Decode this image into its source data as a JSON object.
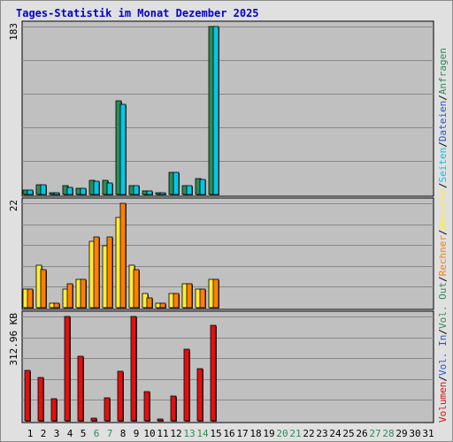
{
  "title": "Tages-Statistik im Monat Dezember 2025",
  "colors": {
    "title": "#0000cc",
    "panel_bg": "#c0c0c0",
    "frame_bg": "#e0e0e0",
    "grid": "#888888",
    "weekend_label": "#2e8b57",
    "weekday_label": "#000000",
    "anfragen": "#2e8b57",
    "dateien": "#2653d6",
    "seiten": "#00c8e6",
    "besuche": "#ffee33",
    "rechner": "#ff8000",
    "vol_out": "#2e8b57",
    "vol_in": "#2653d6",
    "volumen": "#e01010"
  },
  "right_legend": [
    {
      "text": "Volumen",
      "color": "#e01010"
    },
    {
      "text": "/",
      "color": "#000000"
    },
    {
      "text": "Vol. In",
      "color": "#2653d6"
    },
    {
      "text": "/",
      "color": "#000000"
    },
    {
      "text": "Vol. Out",
      "color": "#2e8b57"
    },
    {
      "text": "/",
      "color": "#000000"
    },
    {
      "text": "Rechner",
      "color": "#ff8000"
    },
    {
      "text": "/",
      "color": "#000000"
    },
    {
      "text": "Besuche",
      "color": "#ffee33"
    },
    {
      "text": "/",
      "color": "#000000"
    },
    {
      "text": "Seiten",
      "color": "#00c8e6"
    },
    {
      "text": "/",
      "color": "#000000"
    },
    {
      "text": "Dateien",
      "color": "#2653d6"
    },
    {
      "text": "/",
      "color": "#000000"
    },
    {
      "text": "Anfragen",
      "color": "#2e8b57"
    }
  ],
  "chart_data": [
    {
      "type": "bar",
      "panel": "requests",
      "max_label": "183",
      "ylim": [
        0,
        183
      ],
      "grid": true,
      "categories": [
        "1",
        "2",
        "3",
        "4",
        "5",
        "6",
        "7",
        "8",
        "9",
        "10",
        "11",
        "12",
        "13",
        "14",
        "15",
        "16",
        "17",
        "18",
        "19",
        "20",
        "21",
        "22",
        "23",
        "24",
        "25",
        "26",
        "27",
        "28",
        "29",
        "30",
        "31"
      ],
      "weekend_days": [
        "6",
        "7",
        "13",
        "14",
        "20",
        "21",
        "27",
        "28"
      ],
      "series": [
        {
          "name": "Anfragen",
          "values": [
            5,
            11,
            2,
            10,
            7,
            15,
            15,
            102,
            10,
            4,
            2,
            24,
            10,
            17,
            183,
            0,
            0,
            0,
            0,
            0,
            0,
            0,
            0,
            0,
            0,
            0,
            0,
            0,
            0,
            0,
            0
          ]
        },
        {
          "name": "Seiten",
          "values": [
            5,
            11,
            2,
            8,
            7,
            14,
            13,
            98,
            10,
            4,
            2,
            24,
            10,
            16,
            183,
            0,
            0,
            0,
            0,
            0,
            0,
            0,
            0,
            0,
            0,
            0,
            0,
            0,
            0,
            0,
            0
          ]
        }
      ]
    },
    {
      "type": "bar",
      "panel": "visits",
      "max_label": "22",
      "ylim": [
        0,
        22
      ],
      "grid": true,
      "categories": [
        "1",
        "2",
        "3",
        "4",
        "5",
        "6",
        "7",
        "8",
        "9",
        "10",
        "11",
        "12",
        "13",
        "14",
        "15",
        "16",
        "17",
        "18",
        "19",
        "20",
        "21",
        "22",
        "23",
        "24",
        "25",
        "26",
        "27",
        "28",
        "29",
        "30",
        "31"
      ],
      "series": [
        {
          "name": "Besuche",
          "values": [
            4,
            9,
            1,
            4,
            6,
            14,
            13,
            19,
            9,
            3,
            1,
            3,
            5,
            4,
            6,
            0,
            0,
            0,
            0,
            0,
            0,
            0,
            0,
            0,
            0,
            0,
            0,
            0,
            0,
            0,
            0
          ]
        },
        {
          "name": "Rechner",
          "values": [
            4,
            8,
            1,
            5,
            6,
            15,
            15,
            22,
            8,
            2,
            1,
            3,
            5,
            4,
            6,
            0,
            0,
            0,
            0,
            0,
            0,
            0,
            0,
            0,
            0,
            0,
            0,
            0,
            0,
            0,
            0
          ]
        }
      ]
    },
    {
      "type": "bar",
      "panel": "volume",
      "max_label": "312.96 KB",
      "ylim": [
        0,
        312.96
      ],
      "grid": true,
      "categories": [
        "1",
        "2",
        "3",
        "4",
        "5",
        "6",
        "7",
        "8",
        "9",
        "10",
        "11",
        "12",
        "13",
        "14",
        "15",
        "16",
        "17",
        "18",
        "19",
        "20",
        "21",
        "22",
        "23",
        "24",
        "25",
        "26",
        "27",
        "28",
        "29",
        "30",
        "31"
      ],
      "series": [
        {
          "name": "Volumen",
          "values": [
            152,
            130,
            66,
            313,
            194,
            7,
            70,
            148,
            313,
            88,
            4,
            73,
            216,
            156,
            287,
            0,
            0,
            0,
            0,
            0,
            0,
            0,
            0,
            0,
            0,
            0,
            0,
            0,
            0,
            0,
            0
          ]
        }
      ]
    }
  ]
}
